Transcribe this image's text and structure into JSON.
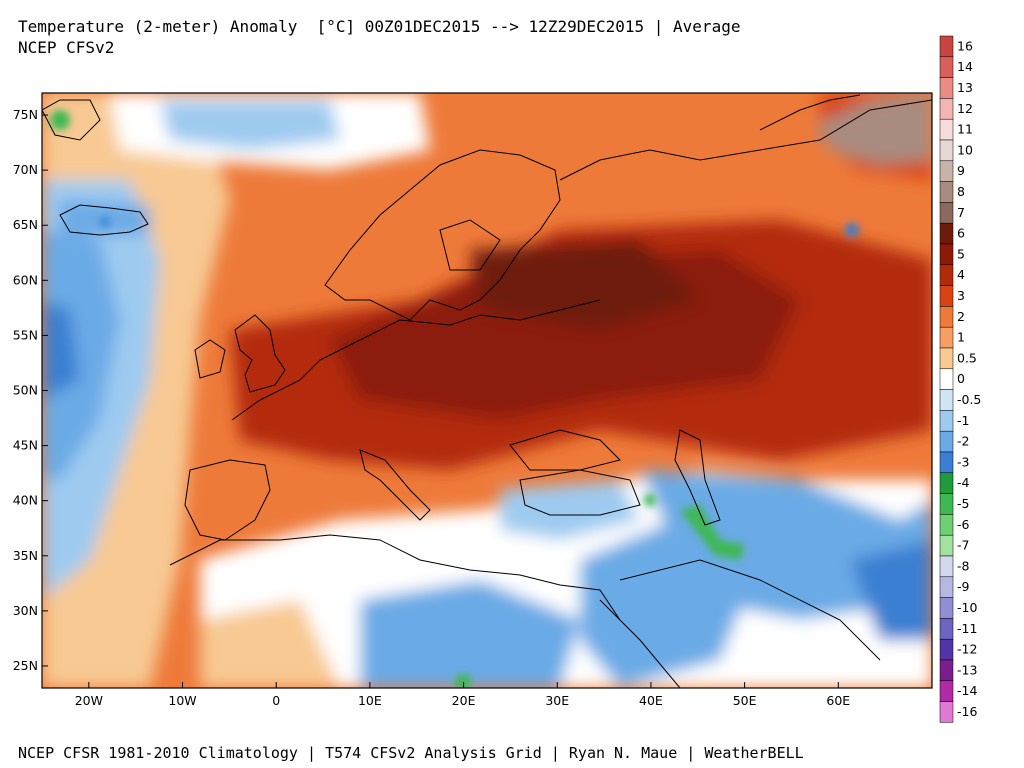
{
  "header": {
    "title": "Temperature (2-meter) Anomaly  [°C] 00Z01DEC2015 --> 12Z29DEC2015 | Average",
    "subtitle": "NCEP CFSv2"
  },
  "footer": {
    "credit": "NCEP CFSR 1981-2010 Climatology | T574 CFSv2 Analysis Grid | Ryan N. Maue | WeatherBELL"
  },
  "map": {
    "lon_range": [
      -25,
      70
    ],
    "lat_range": [
      23,
      77
    ],
    "lat_ticks": [
      "75N",
      "70N",
      "65N",
      "60N",
      "55N",
      "50N",
      "45N",
      "40N",
      "35N",
      "30N",
      "25N"
    ],
    "lat_tick_values": [
      75,
      70,
      65,
      60,
      55,
      50,
      45,
      40,
      35,
      30,
      25
    ],
    "lon_ticks": [
      "20W",
      "10W",
      "0",
      "10E",
      "20E",
      "30E",
      "40E",
      "50E",
      "60E"
    ],
    "lon_tick_values": [
      -20,
      -10,
      0,
      10,
      20,
      30,
      40,
      50,
      60
    ]
  },
  "colorbar": {
    "labels": [
      "16",
      "14",
      "13",
      "12",
      "11",
      "10",
      "9",
      "8",
      "7",
      "6",
      "5",
      "4",
      "3",
      "2",
      "1",
      "0.5",
      "0",
      "-0.5",
      "-1",
      "-2",
      "-3",
      "-4",
      "-5",
      "-6",
      "-7",
      "-8",
      "-9",
      "-10",
      "-11",
      "-12",
      "-13",
      "-14",
      "-16"
    ],
    "colors": [
      "#c8463f",
      "#d9605a",
      "#e98a85",
      "#f3b5b1",
      "#f6dcda",
      "#e6d9d4",
      "#c8b3aa",
      "#a98c80",
      "#8a6a5e",
      "#6e1a0c",
      "#8c1a07",
      "#b32a0b",
      "#d8440f",
      "#ee7a3a",
      "#f5a062",
      "#f8c993",
      "#ffffff",
      "#cfe6f7",
      "#9ecaf0",
      "#6aaae6",
      "#3a7fd2",
      "#1f9a3d",
      "#3db852",
      "#6fd072",
      "#a3e19e",
      "#d2d8ee",
      "#b4b9e3",
      "#8f90d3",
      "#6c66c0",
      "#5234a7",
      "#7a1d8e",
      "#b12aa6",
      "#e07ad3"
    ]
  },
  "legend_colors": {
    "warm_strong": "#8c1a07",
    "warm": "#d8440f",
    "warm_light": "#f5a062",
    "neutral": "#ffffff",
    "cool": "#6aaae6",
    "cold": "#3a7fd2",
    "green": "#3db852",
    "brown": "#9e7f73"
  }
}
